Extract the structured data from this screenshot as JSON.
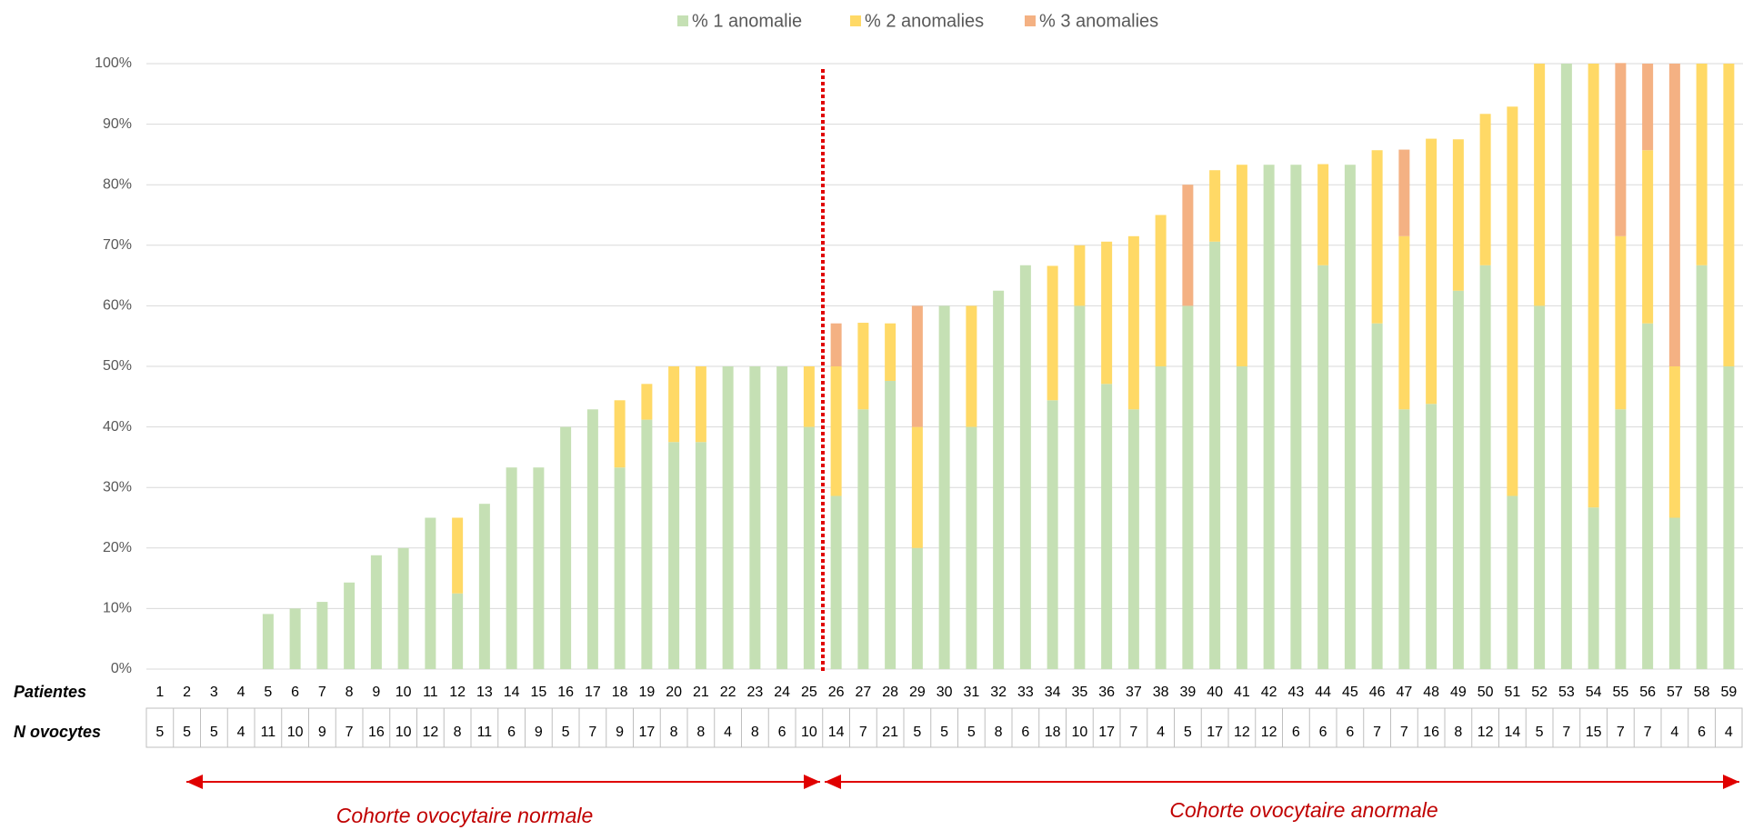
{
  "chart_data": {
    "type": "stacked_bar",
    "categories": [
      "1",
      "2",
      "3",
      "4",
      "5",
      "6",
      "7",
      "8",
      "9",
      "10",
      "11",
      "12",
      "13",
      "14",
      "15",
      "16",
      "17",
      "18",
      "19",
      "20",
      "21",
      "22",
      "23",
      "24",
      "25",
      "26",
      "27",
      "28",
      "29",
      "30",
      "31",
      "32",
      "33",
      "34",
      "35",
      "36",
      "37",
      "38",
      "39",
      "40",
      "41",
      "42",
      "43",
      "44",
      "45",
      "46",
      "47",
      "48",
      "49",
      "50",
      "51",
      "52",
      "53",
      "54",
      "55",
      "56",
      "57",
      "58",
      "59"
    ],
    "series": [
      {
        "name": "% 1 anomalie",
        "color": "#c5e0b4",
        "values": [
          0,
          0,
          0,
          0,
          9.1,
          10,
          11.1,
          14.3,
          18.8,
          20,
          25,
          12.5,
          27.3,
          33.3,
          33.3,
          40,
          42.9,
          33.3,
          41.2,
          37.5,
          37.5,
          50,
          50,
          50,
          40,
          28.6,
          42.9,
          47.6,
          20,
          60,
          40,
          62.5,
          66.7,
          44.4,
          60,
          47.1,
          42.9,
          50,
          60,
          70.6,
          50,
          83.3,
          83.3,
          66.7,
          83.3,
          57.1,
          42.9,
          43.8,
          62.5,
          66.7,
          28.6,
          60,
          100,
          26.7,
          42.9,
          57.1,
          25,
          66.7,
          50
        ]
      },
      {
        "name": "% 2 anomalies",
        "color": "#ffd966",
        "values": [
          0,
          0,
          0,
          0,
          0,
          0,
          0,
          0,
          0,
          0,
          0,
          12.5,
          0,
          0,
          0,
          0,
          0,
          11.1,
          5.9,
          12.5,
          12.5,
          0,
          0,
          0,
          10,
          21.4,
          14.3,
          9.5,
          20,
          0,
          20,
          0,
          0,
          22.2,
          10,
          23.5,
          28.6,
          25,
          0,
          11.8,
          33.3,
          0,
          0,
          16.7,
          0,
          28.6,
          28.6,
          43.8,
          25,
          25,
          64.3,
          40,
          0,
          73.3,
          28.6,
          28.6,
          25,
          33.3,
          50
        ]
      },
      {
        "name": "% 3 anomalies",
        "color": "#f4b183",
        "values": [
          0,
          0,
          0,
          0,
          0,
          0,
          0,
          0,
          0,
          0,
          0,
          0,
          0,
          0,
          0,
          0,
          0,
          0,
          0,
          0,
          0,
          0,
          0,
          0,
          0,
          7.1,
          0,
          0,
          20,
          0,
          0,
          0,
          0,
          0,
          0,
          0,
          0,
          0,
          20,
          0,
          0,
          0,
          0,
          0,
          0,
          0,
          14.3,
          0,
          0,
          0,
          0,
          0,
          0,
          0,
          28.6,
          14.3,
          50,
          0,
          0
        ]
      }
    ],
    "row_labels": [
      "Patientes",
      "N ovocytes"
    ],
    "n_ovocytes": [
      5,
      5,
      5,
      4,
      11,
      10,
      9,
      7,
      16,
      10,
      12,
      8,
      11,
      6,
      9,
      5,
      7,
      9,
      17,
      8,
      8,
      4,
      8,
      6,
      10,
      14,
      7,
      21,
      5,
      5,
      5,
      8,
      6,
      18,
      10,
      17,
      7,
      4,
      5,
      17,
      12,
      12,
      6,
      6,
      6,
      7,
      7,
      16,
      8,
      12,
      14,
      5,
      7,
      15,
      7,
      7,
      4,
      6,
      4
    ],
    "annotations": [
      "Cohorte ovocytaire normale",
      "Cohorte ovocytaire anormale"
    ],
    "ylim": [
      0,
      100
    ],
    "yticks": [
      {
        "value": 0,
        "label": "0%"
      },
      {
        "value": 10,
        "label": "10%"
      },
      {
        "value": 20,
        "label": "20%"
      },
      {
        "value": 30,
        "label": "30%"
      },
      {
        "value": 40,
        "label": "40%"
      },
      {
        "value": 50,
        "label": "50%"
      },
      {
        "value": 60,
        "label": "60%"
      },
      {
        "value": 70,
        "label": "70%"
      },
      {
        "value": 80,
        "label": "80%"
      },
      {
        "value": 90,
        "label": "90%"
      },
      {
        "value": 100,
        "label": "100%"
      }
    ],
    "grid": true,
    "legend": "top"
  }
}
